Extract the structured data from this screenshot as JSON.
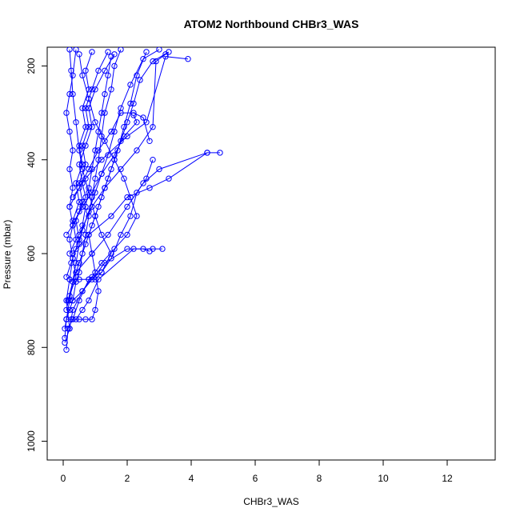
{
  "chart_data": {
    "type": "line",
    "title": "ATOM2 Northbound CHBr3_WAS",
    "xlabel": "CHBr3_WAS",
    "ylabel": "Pressure (mbar)",
    "xlim": [
      -0.5,
      13.5
    ],
    "ylim": [
      1040,
      160
    ],
    "y_reversed": true,
    "x_ticks": [
      "0",
      "2",
      "4",
      "6",
      "8",
      "10",
      "12"
    ],
    "y_ticks": [
      "200",
      "400",
      "600",
      "800",
      "1000"
    ],
    "grid": false,
    "legend": "none",
    "color": "#0000ff",
    "series": [
      {
        "values": [
          [
            0.05,
            760
          ],
          [
            0.1,
            740
          ],
          [
            0.2,
            720
          ],
          [
            0.3,
            700
          ],
          [
            0.4,
            660
          ],
          [
            0.5,
            640
          ],
          [
            0.6,
            600
          ],
          [
            0.7,
            560
          ],
          [
            0.8,
            520
          ],
          [
            0.9,
            480
          ],
          [
            1.0,
            440
          ],
          [
            1.1,
            400
          ],
          [
            1.2,
            350
          ],
          [
            1.3,
            300
          ],
          [
            1.5,
            250
          ],
          [
            1.6,
            200
          ],
          [
            1.8,
            165
          ]
        ]
      },
      {
        "values": [
          [
            0.1,
            805
          ],
          [
            0.15,
            760
          ],
          [
            0.3,
            740
          ],
          [
            0.5,
            700
          ],
          [
            0.8,
            655
          ],
          [
            1.2,
            640
          ],
          [
            1.5,
            600
          ],
          [
            1.2,
            560
          ],
          [
            1.0,
            520
          ],
          [
            0.8,
            470
          ],
          [
            0.6,
            420
          ],
          [
            0.5,
            380
          ],
          [
            0.4,
            320
          ],
          [
            0.3,
            260
          ],
          [
            0.25,
            210
          ],
          [
            0.2,
            165
          ]
        ]
      },
      {
        "values": [
          [
            0.05,
            790
          ],
          [
            0.2,
            760
          ],
          [
            0.1,
            700
          ],
          [
            0.2,
            655
          ],
          [
            0.3,
            610
          ],
          [
            0.2,
            570
          ],
          [
            0.3,
            540
          ],
          [
            0.2,
            500
          ],
          [
            0.3,
            460
          ],
          [
            0.2,
            420
          ],
          [
            0.3,
            380
          ],
          [
            0.2,
            340
          ],
          [
            0.1,
            300
          ],
          [
            0.2,
            260
          ],
          [
            0.3,
            220
          ],
          [
            0.4,
            165
          ]
        ]
      },
      {
        "values": [
          [
            0.1,
            740
          ],
          [
            0.4,
            740
          ],
          [
            0.6,
            720
          ],
          [
            0.8,
            700
          ],
          [
            1.1,
            655
          ],
          [
            2.2,
            590
          ],
          [
            2.8,
            590
          ],
          [
            3.1,
            590
          ]
        ]
      },
      {
        "values": [
          [
            0.2,
            760
          ],
          [
            0.3,
            720
          ],
          [
            0.6,
            680
          ],
          [
            0.9,
            655
          ],
          [
            1.3,
            620
          ],
          [
            2.0,
            590
          ],
          [
            2.5,
            590
          ],
          [
            2.7,
            595
          ]
        ]
      },
      {
        "values": [
          [
            0.3,
            600
          ],
          [
            0.8,
            560
          ],
          [
            1.5,
            520
          ],
          [
            2.0,
            480
          ],
          [
            2.7,
            460
          ],
          [
            3.3,
            440
          ],
          [
            4.5,
            385
          ],
          [
            4.9,
            385
          ]
        ]
      },
      {
        "values": [
          [
            0.4,
            640
          ],
          [
            0.9,
            600
          ],
          [
            1.4,
            560
          ],
          [
            2.0,
            500
          ],
          [
            2.5,
            450
          ],
          [
            3.0,
            420
          ],
          [
            4.5,
            385
          ]
        ]
      },
      {
        "values": [
          [
            0.3,
            480
          ],
          [
            0.7,
            440
          ],
          [
            1.2,
            400
          ],
          [
            2.0,
            350
          ],
          [
            2.6,
            320
          ],
          [
            3.2,
            180
          ],
          [
            3.9,
            185
          ]
        ]
      },
      {
        "values": [
          [
            0.5,
            560
          ],
          [
            0.9,
            500
          ],
          [
            1.3,
            460
          ],
          [
            1.8,
            420
          ],
          [
            2.3,
            380
          ],
          [
            2.8,
            330
          ],
          [
            2.9,
            190
          ],
          [
            3.2,
            175
          ]
        ]
      },
      {
        "values": [
          [
            0.2,
            500
          ],
          [
            0.5,
            460
          ],
          [
            0.8,
            420
          ],
          [
            1.1,
            380
          ],
          [
            1.5,
            340
          ],
          [
            1.8,
            300
          ],
          [
            2.2,
            300
          ],
          [
            2.5,
            310
          ],
          [
            2.7,
            360
          ]
        ]
      },
      {
        "values": [
          [
            0.3,
            540
          ],
          [
            0.6,
            500
          ],
          [
            0.9,
            470
          ],
          [
            1.2,
            430
          ],
          [
            1.6,
            390
          ],
          [
            1.9,
            350
          ],
          [
            2.3,
            320
          ],
          [
            2.2,
            305
          ]
        ]
      },
      {
        "values": [
          [
            0.1,
            650
          ],
          [
            0.25,
            620
          ],
          [
            0.4,
            590
          ],
          [
            0.6,
            550
          ],
          [
            0.8,
            510
          ],
          [
            1.0,
            470
          ],
          [
            1.2,
            430
          ],
          [
            1.4,
            390
          ],
          [
            1.6,
            340
          ],
          [
            1.8,
            290
          ],
          [
            2.1,
            240
          ],
          [
            2.5,
            185
          ],
          [
            3.0,
            165
          ]
        ]
      },
      {
        "values": [
          [
            0.15,
            700
          ],
          [
            0.3,
            660
          ],
          [
            0.5,
            620
          ],
          [
            0.7,
            580
          ],
          [
            0.9,
            540
          ],
          [
            1.1,
            500
          ],
          [
            1.3,
            460
          ],
          [
            1.5,
            420
          ],
          [
            1.7,
            380
          ],
          [
            1.9,
            330
          ],
          [
            2.1,
            280
          ],
          [
            2.3,
            220
          ],
          [
            2.6,
            170
          ]
        ]
      },
      {
        "values": [
          [
            0.05,
            780
          ],
          [
            0.1,
            740
          ],
          [
            0.2,
            700
          ],
          [
            0.3,
            660
          ],
          [
            0.4,
            620
          ],
          [
            0.5,
            580
          ],
          [
            0.6,
            540
          ],
          [
            0.7,
            500
          ],
          [
            0.8,
            460
          ],
          [
            0.9,
            420
          ],
          [
            1.0,
            380
          ],
          [
            1.1,
            340
          ],
          [
            1.2,
            300
          ],
          [
            1.3,
            260
          ],
          [
            1.4,
            220
          ],
          [
            1.5,
            180
          ]
        ]
      },
      {
        "values": [
          [
            0.2,
            655
          ],
          [
            0.5,
            655
          ],
          [
            0.8,
            655
          ],
          [
            1.0,
            655
          ],
          [
            1.2,
            640
          ],
          [
            1.5,
            610
          ],
          [
            1.8,
            560
          ],
          [
            2.1,
            520
          ],
          [
            2.3,
            470
          ],
          [
            2.6,
            440
          ],
          [
            2.8,
            400
          ]
        ]
      },
      {
        "values": [
          [
            0.1,
            560
          ],
          [
            0.3,
            540
          ],
          [
            0.5,
            510
          ],
          [
            0.7,
            480
          ],
          [
            0.6,
            450
          ],
          [
            0.5,
            410
          ],
          [
            0.7,
            370
          ],
          [
            0.9,
            330
          ],
          [
            0.8,
            290
          ],
          [
            1.0,
            250
          ],
          [
            1.3,
            210
          ],
          [
            1.6,
            175
          ]
        ]
      },
      {
        "values": [
          [
            0.2,
            600
          ],
          [
            0.4,
            570
          ],
          [
            0.3,
            530
          ],
          [
            0.5,
            490
          ],
          [
            0.4,
            450
          ],
          [
            0.6,
            410
          ],
          [
            0.5,
            370
          ],
          [
            0.7,
            330
          ],
          [
            0.6,
            290
          ],
          [
            0.8,
            250
          ],
          [
            0.7,
            210
          ],
          [
            0.9,
            170
          ]
        ]
      },
      {
        "values": [
          [
            0.3,
            700
          ],
          [
            0.6,
            680
          ],
          [
            0.9,
            650
          ],
          [
            1.2,
            620
          ],
          [
            1.6,
            590
          ],
          [
            2.0,
            560
          ],
          [
            2.3,
            520
          ],
          [
            2.1,
            480
          ],
          [
            1.9,
            440
          ],
          [
            1.6,
            400
          ],
          [
            1.3,
            360
          ],
          [
            1.0,
            320
          ],
          [
            0.8,
            270
          ],
          [
            0.6,
            220
          ],
          [
            0.5,
            175
          ]
        ]
      },
      {
        "values": [
          [
            0.1,
            720
          ],
          [
            0.2,
            690
          ],
          [
            0.4,
            650
          ],
          [
            0.3,
            610
          ],
          [
            0.5,
            570
          ],
          [
            0.4,
            530
          ],
          [
            0.6,
            490
          ],
          [
            0.5,
            450
          ],
          [
            0.7,
            410
          ],
          [
            0.6,
            370
          ],
          [
            0.8,
            330
          ],
          [
            0.7,
            290
          ],
          [
            0.9,
            250
          ],
          [
            1.1,
            210
          ],
          [
            1.4,
            170
          ]
        ]
      },
      {
        "values": [
          [
            0.25,
            740
          ],
          [
            0.5,
            740
          ],
          [
            0.7,
            740
          ],
          [
            0.9,
            740
          ],
          [
            1.0,
            720
          ],
          [
            1.1,
            680
          ],
          [
            1.0,
            640
          ],
          [
            0.9,
            600
          ],
          [
            0.8,
            560
          ],
          [
            1.0,
            520
          ],
          [
            1.2,
            480
          ],
          [
            1.4,
            440
          ],
          [
            1.6,
            400
          ],
          [
            1.8,
            360
          ],
          [
            2.0,
            320
          ],
          [
            2.2,
            280
          ],
          [
            2.4,
            230
          ],
          [
            2.8,
            190
          ],
          [
            3.3,
            170
          ]
        ]
      }
    ]
  }
}
